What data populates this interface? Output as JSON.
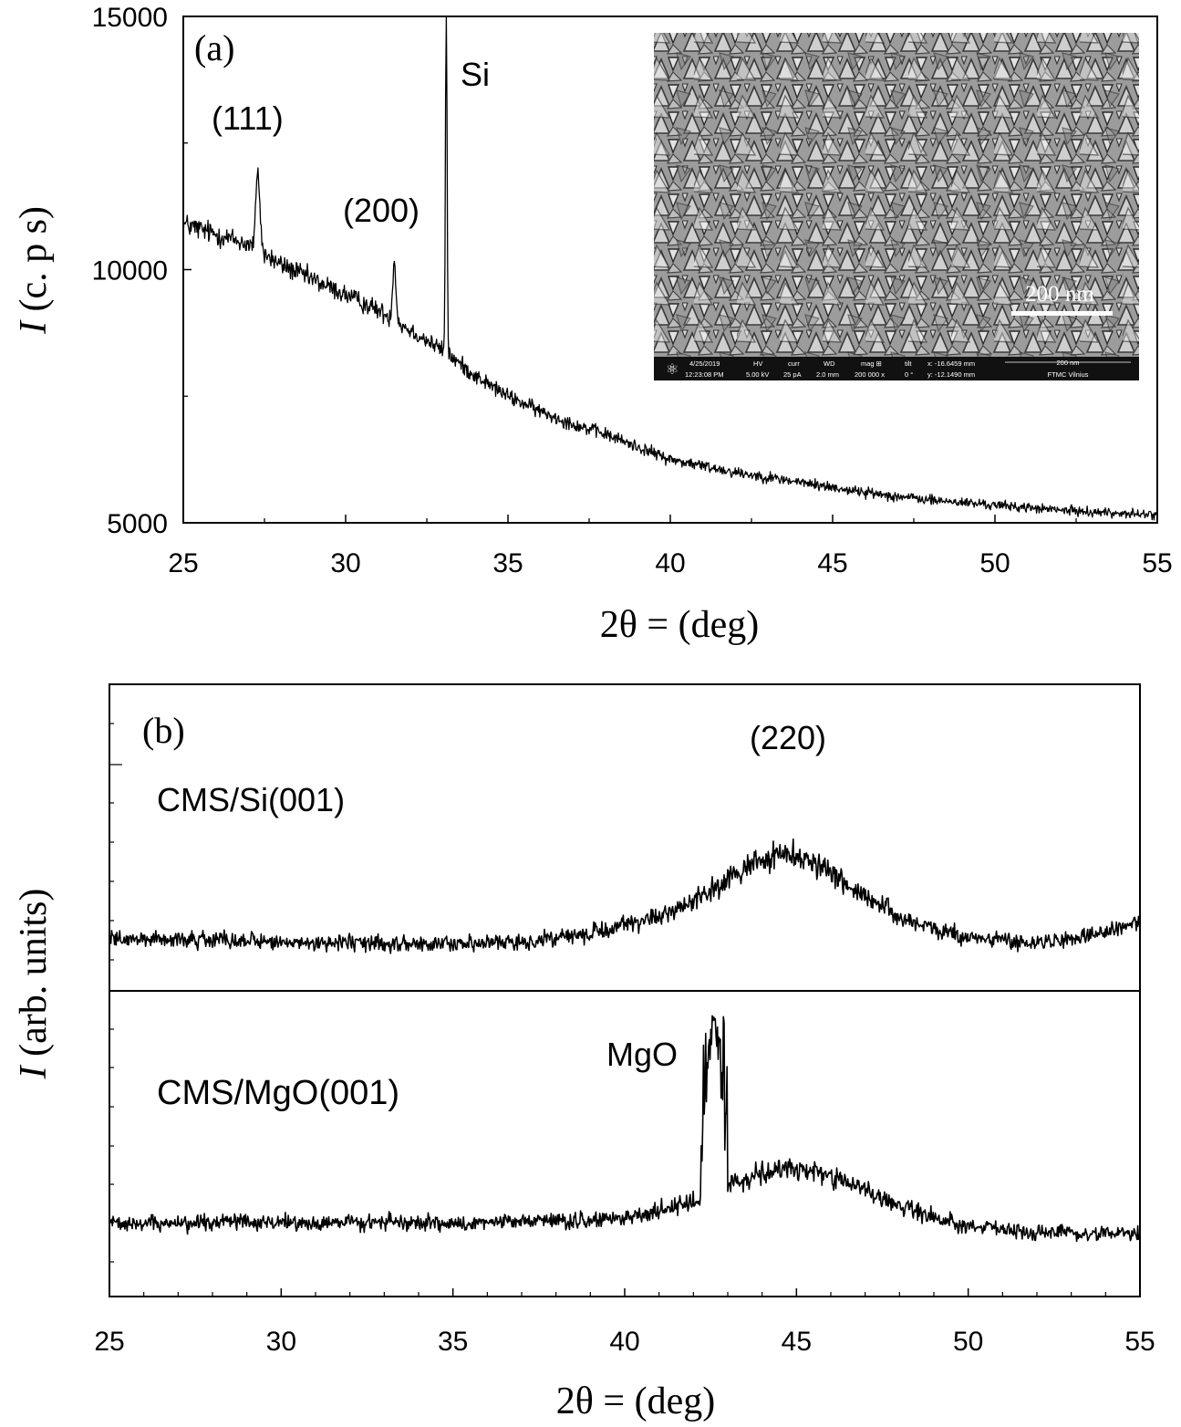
{
  "chart_data": [
    {
      "panel": "(a)",
      "type": "line",
      "xlabel": "2θ = (deg)",
      "ylabel_italic": "I",
      "ylabel_rest": " (c. p s)",
      "xlim": [
        25,
        55
      ],
      "ylim": [
        5000,
        15000
      ],
      "xticks": [
        25,
        30,
        35,
        40,
        45,
        50,
        55
      ],
      "yticks": [
        5000,
        10000,
        15000
      ],
      "grid": false,
      "peaks": [
        {
          "label": "(111)",
          "x": 27.3,
          "y": 12300
        },
        {
          "label": "(200)",
          "x": 31.5,
          "y": 10500
        },
        {
          "label": "Si",
          "x": 33.1,
          "y": 15000
        }
      ],
      "series": [
        {
          "x": [
            25,
            26,
            27,
            28,
            29,
            30,
            31,
            32,
            33,
            34,
            35,
            36,
            37,
            38,
            39,
            40,
            42,
            44,
            46,
            48,
            50,
            52,
            55
          ],
          "y": [
            10900,
            10700,
            10500,
            10100,
            9800,
            9500,
            9200,
            8800,
            8400,
            7900,
            7500,
            7200,
            6950,
            6750,
            6500,
            6250,
            6000,
            5800,
            5600,
            5450,
            5350,
            5250,
            5150
          ]
        }
      ],
      "inset": {
        "scale_bar": "200 nm",
        "info_bar": {
          "date": "4/25/2019",
          "time": "12:23:08 PM",
          "hv_label": "HV",
          "hv": "5.00 kV",
          "curr_label": "curr",
          "curr": "25 pA",
          "wd_label": "WD",
          "wd": "2.0 mm",
          "mag_label": "mag ⊞",
          "mag": "200 000 x",
          "tilt_label": "tilt",
          "tilt": "0 °",
          "x": "x: -16.6459 mm",
          "y": "y: -12.1490 mm",
          "bar": "200 nm",
          "lab": "FTMC Vilnius"
        }
      }
    },
    {
      "panel": "(b)",
      "type": "line",
      "xlabel": "2θ = (deg)",
      "ylabel_italic": "I",
      "ylabel_rest": " (arb. units)",
      "xlim": [
        25,
        55
      ],
      "xticks": [
        25,
        30,
        35,
        40,
        45,
        50,
        55
      ],
      "grid": false,
      "peak_label": "(220)",
      "series": [
        {
          "name": "CMS/Si(001)",
          "x": [
            25,
            30,
            35,
            37,
            39,
            41,
            42,
            43,
            44,
            45,
            46,
            47,
            48,
            50,
            52,
            54,
            55
          ],
          "y": [
            1.0,
            0.9,
            0.85,
            0.9,
            1.1,
            1.5,
            1.9,
            2.4,
            2.9,
            3.1,
            2.6,
            2.0,
            1.5,
            1.0,
            0.9,
            1.1,
            1.4
          ]
        },
        {
          "name": "CMS/MgO(001)",
          "annotation": "MgO",
          "annotation_x": 42.6,
          "x": [
            25,
            30,
            35,
            38,
            40,
            41,
            42,
            43,
            44,
            45,
            46,
            47,
            48,
            50,
            52,
            55
          ],
          "y": [
            1.0,
            1.0,
            1.0,
            1.05,
            1.1,
            1.3,
            1.5,
            1.9,
            2.2,
            2.3,
            2.1,
            1.8,
            1.4,
            0.9,
            0.75,
            0.7
          ]
        }
      ]
    }
  ]
}
